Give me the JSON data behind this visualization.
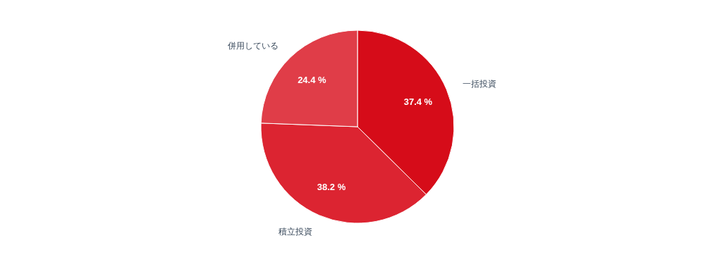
{
  "chart_data": {
    "type": "pie",
    "categories": [
      "一括投資",
      "積立投資",
      "併用している"
    ],
    "values": [
      37.4,
      38.2,
      24.4
    ],
    "colors": [
      "#d60c19",
      "#dc2431",
      "#e03d48"
    ],
    "value_labels": [
      "37.4 %",
      "38.2 %",
      "24.4 %"
    ]
  }
}
